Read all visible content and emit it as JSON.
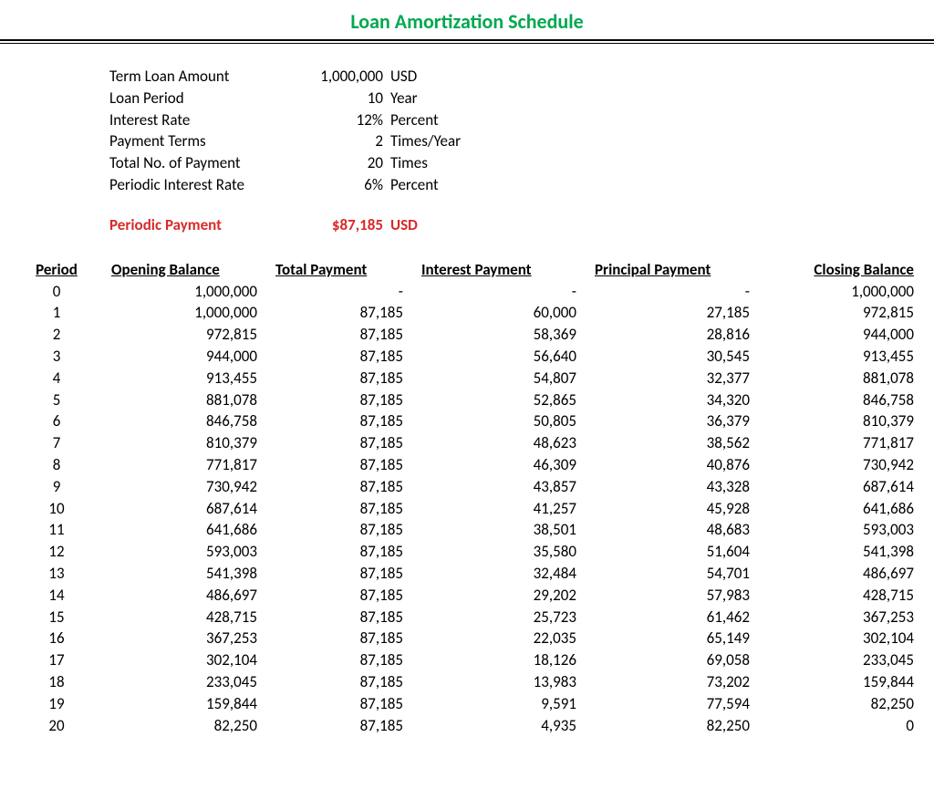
{
  "colors": {
    "title": "#00a84f",
    "highlight": "#d82a2a",
    "text": "#000000",
    "background": "#ffffff"
  },
  "title": "Loan Amortization Schedule",
  "summary": [
    {
      "label": "Term Loan Amount",
      "value": "1,000,000",
      "unit": "USD"
    },
    {
      "label": "Loan Period",
      "value": "10",
      "unit": "Year"
    },
    {
      "label": "Interest Rate",
      "value": "12%",
      "unit": "Percent"
    },
    {
      "label": "Payment Terms",
      "value": "2",
      "unit": "Times/Year"
    },
    {
      "label": "Total No. of Payment",
      "value": "20",
      "unit": "Times"
    },
    {
      "label": "Periodic Interest Rate",
      "value": "6%",
      "unit": "Percent"
    }
  ],
  "periodic_payment": {
    "label": "Periodic Payment",
    "value": "$87,185",
    "unit": "USD"
  },
  "columns": [
    "Period",
    "Opening Balance",
    "Total Payment",
    "Interest Payment",
    "Principal Payment",
    "Closing Balance"
  ],
  "rows": [
    [
      "0",
      "1,000,000",
      "-",
      "-",
      "-",
      "1,000,000"
    ],
    [
      "1",
      "1,000,000",
      "87,185",
      "60,000",
      "27,185",
      "972,815"
    ],
    [
      "2",
      "972,815",
      "87,185",
      "58,369",
      "28,816",
      "944,000"
    ],
    [
      "3",
      "944,000",
      "87,185",
      "56,640",
      "30,545",
      "913,455"
    ],
    [
      "4",
      "913,455",
      "87,185",
      "54,807",
      "32,377",
      "881,078"
    ],
    [
      "5",
      "881,078",
      "87,185",
      "52,865",
      "34,320",
      "846,758"
    ],
    [
      "6",
      "846,758",
      "87,185",
      "50,805",
      "36,379",
      "810,379"
    ],
    [
      "7",
      "810,379",
      "87,185",
      "48,623",
      "38,562",
      "771,817"
    ],
    [
      "8",
      "771,817",
      "87,185",
      "46,309",
      "40,876",
      "730,942"
    ],
    [
      "9",
      "730,942",
      "87,185",
      "43,857",
      "43,328",
      "687,614"
    ],
    [
      "10",
      "687,614",
      "87,185",
      "41,257",
      "45,928",
      "641,686"
    ],
    [
      "11",
      "641,686",
      "87,185",
      "38,501",
      "48,683",
      "593,003"
    ],
    [
      "12",
      "593,003",
      "87,185",
      "35,580",
      "51,604",
      "541,398"
    ],
    [
      "13",
      "541,398",
      "87,185",
      "32,484",
      "54,701",
      "486,697"
    ],
    [
      "14",
      "486,697",
      "87,185",
      "29,202",
      "57,983",
      "428,715"
    ],
    [
      "15",
      "428,715",
      "87,185",
      "25,723",
      "61,462",
      "367,253"
    ],
    [
      "16",
      "367,253",
      "87,185",
      "22,035",
      "65,149",
      "302,104"
    ],
    [
      "17",
      "302,104",
      "87,185",
      "18,126",
      "69,058",
      "233,045"
    ],
    [
      "18",
      "233,045",
      "87,185",
      "13,983",
      "73,202",
      "159,844"
    ],
    [
      "19",
      "159,844",
      "87,185",
      "9,591",
      "77,594",
      "82,250"
    ],
    [
      "20",
      "82,250",
      "87,185",
      "4,935",
      "82,250",
      "0"
    ]
  ]
}
